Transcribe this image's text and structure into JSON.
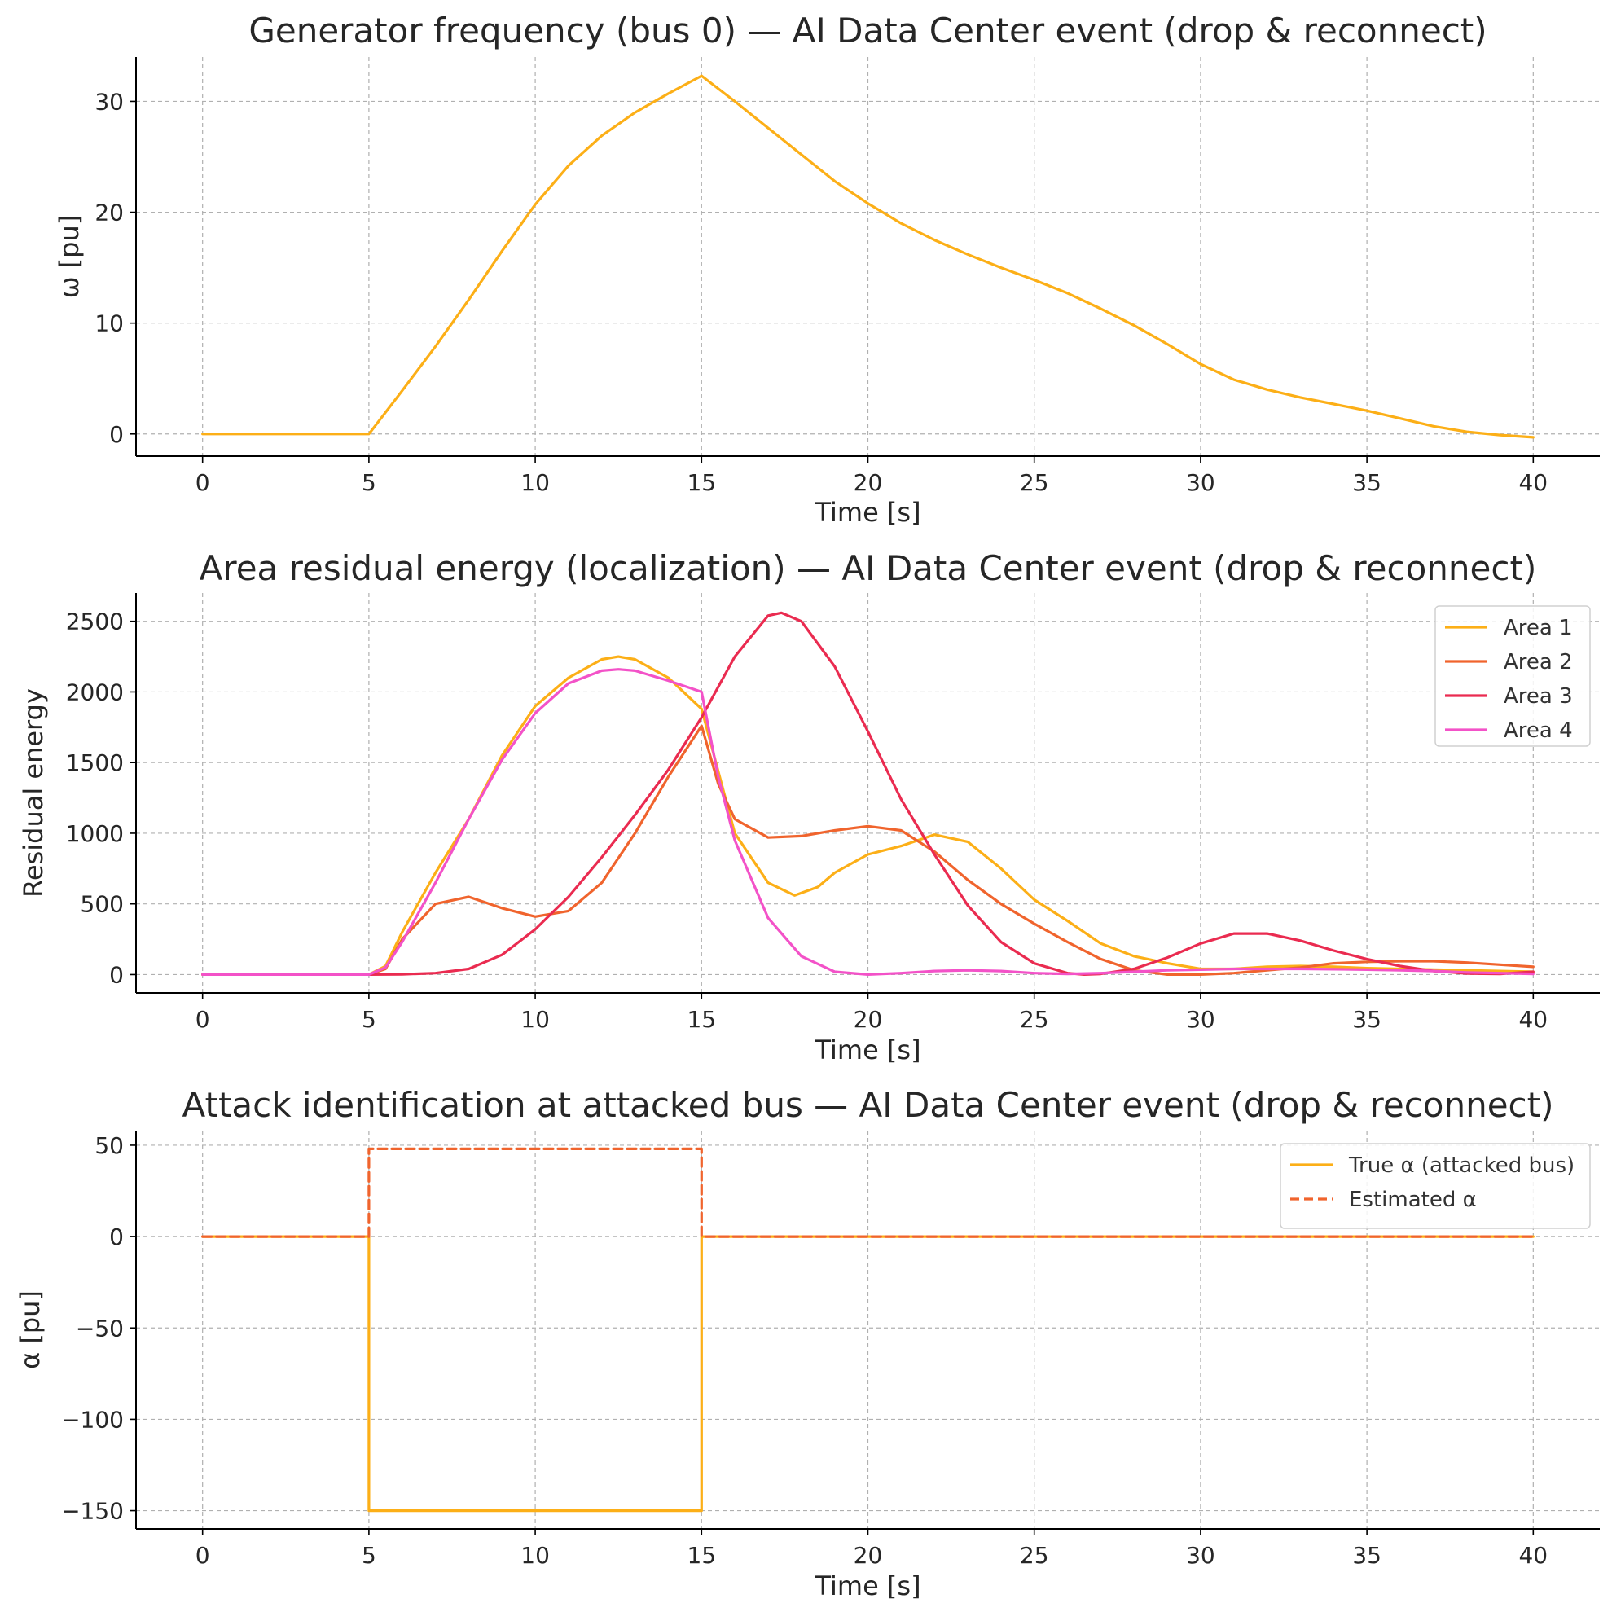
{
  "chart_data": [
    {
      "type": "line",
      "title": "Generator frequency (bus 0) — AI Data Center event (drop & reconnect)",
      "xlabel": "Time [s]",
      "ylabel": "ω [pu]",
      "xlim": [
        -2,
        42
      ],
      "ylim": [
        -2,
        34
      ],
      "xticks": [
        0,
        5,
        10,
        15,
        20,
        25,
        30,
        35,
        40
      ],
      "xtick_labels": [
        "0",
        "5",
        "10",
        "15",
        "20",
        "25",
        "30",
        "35",
        "40"
      ],
      "yticks": [
        0,
        10,
        20,
        30
      ],
      "ytick_labels": [
        "0",
        "10",
        "20",
        "30"
      ],
      "grid": true,
      "legend": null,
      "series": [
        {
          "color": "#FCAF17",
          "dashed": false,
          "x": [
            0,
            5,
            6,
            7,
            8,
            9,
            10,
            11,
            12,
            13,
            14,
            15,
            16,
            17,
            18,
            19,
            20,
            21,
            22,
            23,
            24,
            25,
            26,
            27,
            28,
            29,
            30,
            31,
            32,
            33,
            34,
            35,
            36,
            37,
            38,
            39,
            40
          ],
          "y": [
            0,
            0,
            3.9,
            7.9,
            12.1,
            16.5,
            20.7,
            24.2,
            26.9,
            29.0,
            30.7,
            32.3,
            30.0,
            27.6,
            25.2,
            22.8,
            20.8,
            19.0,
            17.5,
            16.2,
            15.0,
            13.9,
            12.7,
            11.3,
            9.8,
            8.1,
            6.3,
            4.9,
            4.0,
            3.3,
            2.7,
            2.1,
            1.4,
            0.7,
            0.2,
            -0.1,
            -0.3
          ]
        }
      ]
    },
    {
      "type": "line",
      "title": "Area residual energy (localization) — AI Data Center event (drop & reconnect)",
      "xlabel": "Time [s]",
      "ylabel": "Residual energy",
      "xlim": [
        -2,
        42
      ],
      "ylim": [
        -130,
        2700
      ],
      "xticks": [
        0,
        5,
        10,
        15,
        20,
        25,
        30,
        35,
        40
      ],
      "xtick_labels": [
        "0",
        "5",
        "10",
        "15",
        "20",
        "25",
        "30",
        "35",
        "40"
      ],
      "yticks": [
        0,
        500,
        1000,
        1500,
        2000,
        2500
      ],
      "ytick_labels": [
        "0",
        "500",
        "1000",
        "1500",
        "2000",
        "2500"
      ],
      "grid": true,
      "legend": "top-right",
      "series": [
        {
          "name": "Area 1",
          "color": "#FCAF17",
          "dashed": false,
          "x": [
            0,
            5,
            5.5,
            6,
            7,
            8,
            9,
            10,
            11,
            12,
            12.5,
            13,
            14,
            15,
            16,
            17,
            17.8,
            18.5,
            19,
            20,
            21,
            22,
            23,
            24,
            25,
            26,
            27,
            28,
            29,
            30,
            31,
            32,
            33,
            34,
            35,
            36,
            37,
            38,
            39,
            40
          ],
          "y": [
            0,
            0,
            60,
            300,
            720,
            1100,
            1550,
            1900,
            2100,
            2230,
            2250,
            2230,
            2100,
            1880,
            1000,
            650,
            560,
            620,
            720,
            850,
            910,
            990,
            940,
            750,
            530,
            380,
            220,
            130,
            80,
            40,
            40,
            55,
            60,
            55,
            45,
            40,
            35,
            30,
            25,
            20
          ]
        },
        {
          "name": "Area 2",
          "color": "#F0642D",
          "dashed": false,
          "x": [
            0,
            5,
            5.5,
            6,
            7,
            8,
            9,
            10,
            11,
            12,
            13,
            14,
            15,
            15.5,
            16,
            17,
            18,
            19,
            20,
            21,
            22,
            23,
            24,
            25,
            26,
            27,
            28,
            29,
            30,
            31,
            32,
            33,
            34,
            35,
            36,
            37,
            38,
            39,
            40
          ],
          "y": [
            0,
            0,
            40,
            250,
            500,
            550,
            470,
            410,
            450,
            650,
            1000,
            1400,
            1760,
            1350,
            1100,
            970,
            980,
            1020,
            1050,
            1020,
            870,
            670,
            500,
            360,
            230,
            110,
            30,
            0,
            0,
            10,
            30,
            50,
            80,
            90,
            95,
            95,
            85,
            70,
            55
          ]
        },
        {
          "name": "Area 3",
          "color": "#EA2B50",
          "dashed": false,
          "x": [
            0,
            5,
            6,
            7,
            8,
            9,
            10,
            11,
            12,
            13,
            14,
            15,
            16,
            17,
            17.4,
            18,
            19,
            20,
            21,
            22,
            23,
            24,
            25,
            26,
            26.5,
            27,
            28,
            29,
            30,
            31,
            32,
            33,
            34,
            35,
            36,
            37,
            38,
            39,
            40
          ],
          "y": [
            0,
            0,
            2,
            10,
            40,
            140,
            320,
            550,
            830,
            1130,
            1450,
            1820,
            2250,
            2540,
            2560,
            2500,
            2180,
            1720,
            1240,
            850,
            490,
            230,
            80,
            10,
            0,
            5,
            40,
            120,
            220,
            290,
            290,
            240,
            170,
            110,
            60,
            25,
            8,
            5,
            20
          ]
        },
        {
          "name": "Area 4",
          "color": "#F352C8",
          "dashed": false,
          "x": [
            0,
            5,
            5.5,
            6,
            7,
            8,
            9,
            10,
            11,
            12,
            12.5,
            13,
            14,
            15,
            15.5,
            16,
            17,
            18,
            19,
            20,
            21,
            22,
            23,
            24,
            25,
            26,
            27,
            28,
            29,
            30,
            31,
            32,
            33,
            34,
            35,
            36,
            37,
            38,
            39,
            40
          ],
          "y": [
            0,
            0,
            50,
            230,
            650,
            1100,
            1520,
            1850,
            2060,
            2150,
            2160,
            2150,
            2080,
            2000,
            1400,
            950,
            400,
            130,
            20,
            0,
            10,
            25,
            30,
            25,
            10,
            5,
            10,
            20,
            30,
            35,
            40,
            40,
            40,
            38,
            35,
            30,
            25,
            15,
            10,
            5
          ]
        }
      ]
    },
    {
      "type": "line",
      "title": "Attack identification at attacked bus — AI Data Center event (drop & reconnect)",
      "xlabel": "Time [s]",
      "ylabel": "α [pu]",
      "xlim": [
        -2,
        42
      ],
      "ylim": [
        -160,
        58
      ],
      "xticks": [
        0,
        5,
        10,
        15,
        20,
        25,
        30,
        35,
        40
      ],
      "xtick_labels": [
        "0",
        "5",
        "10",
        "15",
        "20",
        "25",
        "30",
        "35",
        "40"
      ],
      "yticks": [
        -150,
        -100,
        -50,
        0,
        50
      ],
      "ytick_labels": [
        "−150",
        "−100",
        "−50",
        "0",
        "50"
      ],
      "grid": true,
      "legend": "top-right",
      "series": [
        {
          "name": "True α (attacked bus)",
          "color": "#FCAF17",
          "dashed": false,
          "x": [
            0,
            5,
            5,
            15,
            15,
            40
          ],
          "y": [
            0,
            0,
            -150,
            -150,
            0,
            0
          ]
        },
        {
          "name": "Estimated α",
          "color": "#F0642D",
          "dashed": true,
          "x": [
            0,
            5,
            5,
            15,
            15,
            40
          ],
          "y": [
            0,
            0,
            48,
            48,
            0,
            0
          ]
        }
      ]
    }
  ]
}
